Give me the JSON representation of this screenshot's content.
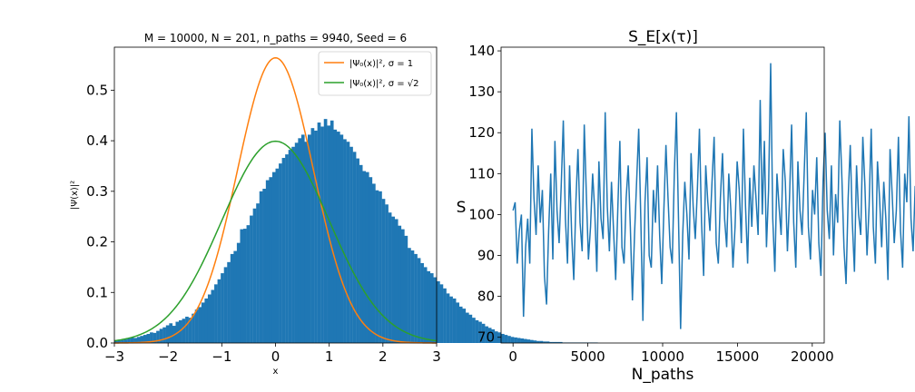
{
  "colors": {
    "bars": "#1f77b4",
    "sigma1": "#ff7f0e",
    "sigma_sqrt2": "#2ca02c",
    "series": "#1f77b4",
    "axes": "#000000",
    "legend_edge": "#cccccc"
  },
  "chart_data": [
    {
      "type": "bar",
      "title": "M = 10000, N = 201, n_paths = 9940, Seed = 6",
      "xlabel": "x",
      "ylabel": "|Ψ(x)|²",
      "xlim": [
        -3,
        3
      ],
      "ylim": [
        0,
        0.585
      ],
      "xticks": [
        -3,
        -2,
        -1,
        0,
        1,
        2,
        3
      ],
      "xtick_labels": [
        "−3",
        "−2",
        "−1",
        "0",
        "1",
        "2",
        "3"
      ],
      "yticks": [
        0.0,
        0.1,
        0.2,
        0.3,
        0.4,
        0.5
      ],
      "ytick_labels": [
        "0.0",
        "0.1",
        "0.2",
        "0.3",
        "0.4",
        "0.5"
      ],
      "grid": false,
      "legend_position": "top-right",
      "histogram": {
        "bin_edges_start": -3,
        "bin_width": 0.06,
        "values": [
          0.004,
          0.005,
          0.006,
          0.007,
          0.009,
          0.011,
          0.01,
          0.012,
          0.014,
          0.016,
          0.018,
          0.021,
          0.02,
          0.024,
          0.028,
          0.031,
          0.035,
          0.039,
          0.034,
          0.042,
          0.045,
          0.048,
          0.052,
          0.05,
          0.058,
          0.066,
          0.071,
          0.08,
          0.088,
          0.096,
          0.105,
          0.116,
          0.126,
          0.138,
          0.15,
          0.16,
          0.176,
          0.182,
          0.198,
          0.225,
          0.226,
          0.233,
          0.252,
          0.266,
          0.276,
          0.3,
          0.305,
          0.322,
          0.328,
          0.338,
          0.345,
          0.355,
          0.366,
          0.373,
          0.382,
          0.388,
          0.396,
          0.405,
          0.412,
          0.398,
          0.412,
          0.425,
          0.42,
          0.436,
          0.428,
          0.443,
          0.43,
          0.44,
          0.422,
          0.418,
          0.412,
          0.403,
          0.398,
          0.388,
          0.378,
          0.365,
          0.352,
          0.34,
          0.338,
          0.328,
          0.315,
          0.302,
          0.3,
          0.285,
          0.274,
          0.258,
          0.25,
          0.245,
          0.232,
          0.225,
          0.212,
          0.188,
          0.183,
          0.176,
          0.168,
          0.158,
          0.15,
          0.142,
          0.138,
          0.13,
          0.122,
          0.116,
          0.108,
          0.098,
          0.092,
          0.088,
          0.08,
          0.072,
          0.068,
          0.06,
          0.056,
          0.05,
          0.045,
          0.042,
          0.038,
          0.033,
          0.03,
          0.027,
          0.023,
          0.021,
          0.018,
          0.016,
          0.014,
          0.012,
          0.011,
          0.01,
          0.009,
          0.008,
          0.007,
          0.006,
          0.005,
          0.004,
          0.004,
          0.003,
          0.003,
          0.002,
          0.002,
          0.002,
          0.002,
          0.001,
          0.001,
          0.001,
          0.001,
          0.001,
          0.001,
          0.001,
          0.001,
          0.001,
          0.001,
          0.001
        ]
      },
      "series": [
        {
          "name": "|Ψ₀(x)|²,    σ = 1",
          "sigma": 1,
          "peak": 0.564
        },
        {
          "name": "|Ψ₀(x)|²,    σ = √2",
          "sigma": 1.4142,
          "peak": 0.399
        }
      ]
    },
    {
      "type": "line",
      "title": "S_E[x(τ)]",
      "xlabel": "N_paths",
      "ylabel": "S",
      "xlim": [
        -800,
        20800
      ],
      "ylim": [
        68.6,
        140.9
      ],
      "xticks": [
        0,
        5000,
        10000,
        15000,
        20000
      ],
      "xtick_labels": [
        "0",
        "5000",
        "10000",
        "15000",
        "20000"
      ],
      "yticks": [
        70,
        80,
        90,
        100,
        110,
        120,
        130,
        140
      ],
      "ytick_labels": [
        "70",
        "80",
        "90",
        "100",
        "110",
        "120",
        "130",
        "140"
      ],
      "grid": false,
      "series": [
        {
          "x_start": 0,
          "x_end": 19880,
          "x_step": 140,
          "values": [
            101,
            103,
            88,
            96,
            100,
            75,
            92,
            99,
            88,
            121,
            104,
            95,
            112,
            98,
            106,
            85,
            78,
            96,
            110,
            89,
            118,
            101,
            93,
            107,
            123,
            99,
            88,
            112,
            95,
            84,
            103,
            116,
            98,
            91,
            122,
            105,
            89,
            97,
            110,
            101,
            86,
            113,
            99,
            94,
            125,
            102,
            91,
            108,
            96,
            84,
            101,
            118,
            92,
            88,
            104,
            112,
            97,
            79,
            95,
            108,
            121,
            99,
            74,
            103,
            114,
            90,
            87,
            106,
            98,
            112,
            95,
            83,
            101,
            117,
            104,
            92,
            88,
            110,
            125,
            99,
            72,
            95,
            108,
            100,
            89,
            115,
            102,
            94,
            106,
            121,
            98,
            85,
            112,
            103,
            96,
            108,
            119,
            93,
            88,
            104,
            115,
            99,
            92,
            110,
            101,
            87,
            97,
            113,
            106,
            93,
            121,
            102,
            88,
            109,
            97,
            112,
            104,
            95,
            128,
            100,
            118,
            92,
            106,
            137,
            99,
            86,
            110,
            102,
            95,
            116,
            108,
            91,
            104,
            122,
            98,
            87,
            113,
            101,
            95,
            110,
            125,
            97,
            89,
            106,
            100,
            114,
            93,
            85,
            108,
            120,
            101,
            94,
            112,
            90,
            105,
            98,
            123,
            109,
            92,
            83,
            104,
            117,
            98,
            86,
            112,
            100,
            95,
            119,
            107,
            90,
            102,
            121,
            97,
            88,
            113,
            104,
            92,
            108,
            99,
            84,
            116,
            105,
            93,
            101,
            119,
            96,
            87,
            110,
            103,
            124,
            99,
            91,
            107,
            95,
            113,
            85,
            104,
            118,
            97,
            89,
            108,
            100,
            121,
            94,
            86,
            106,
            114,
            98,
            92,
            118,
            101,
            87,
            109,
            121,
            104,
            95,
            126,
            98,
            110,
            92,
            103,
            130,
            106,
            94,
            87,
            135,
            99,
            82,
            112,
            103,
            116,
            97,
            89,
            106,
            120,
            92,
            80,
            108,
            99,
            115,
            104,
            88,
            96,
            112,
            101,
            94,
            85,
            110,
            118,
            97,
            106,
            121,
            91,
            86,
            103,
            113,
            98,
            92,
            108,
            119,
            95,
            100,
            109,
            104,
            121,
            103,
            107,
            110
          ]
        }
      ]
    }
  ]
}
